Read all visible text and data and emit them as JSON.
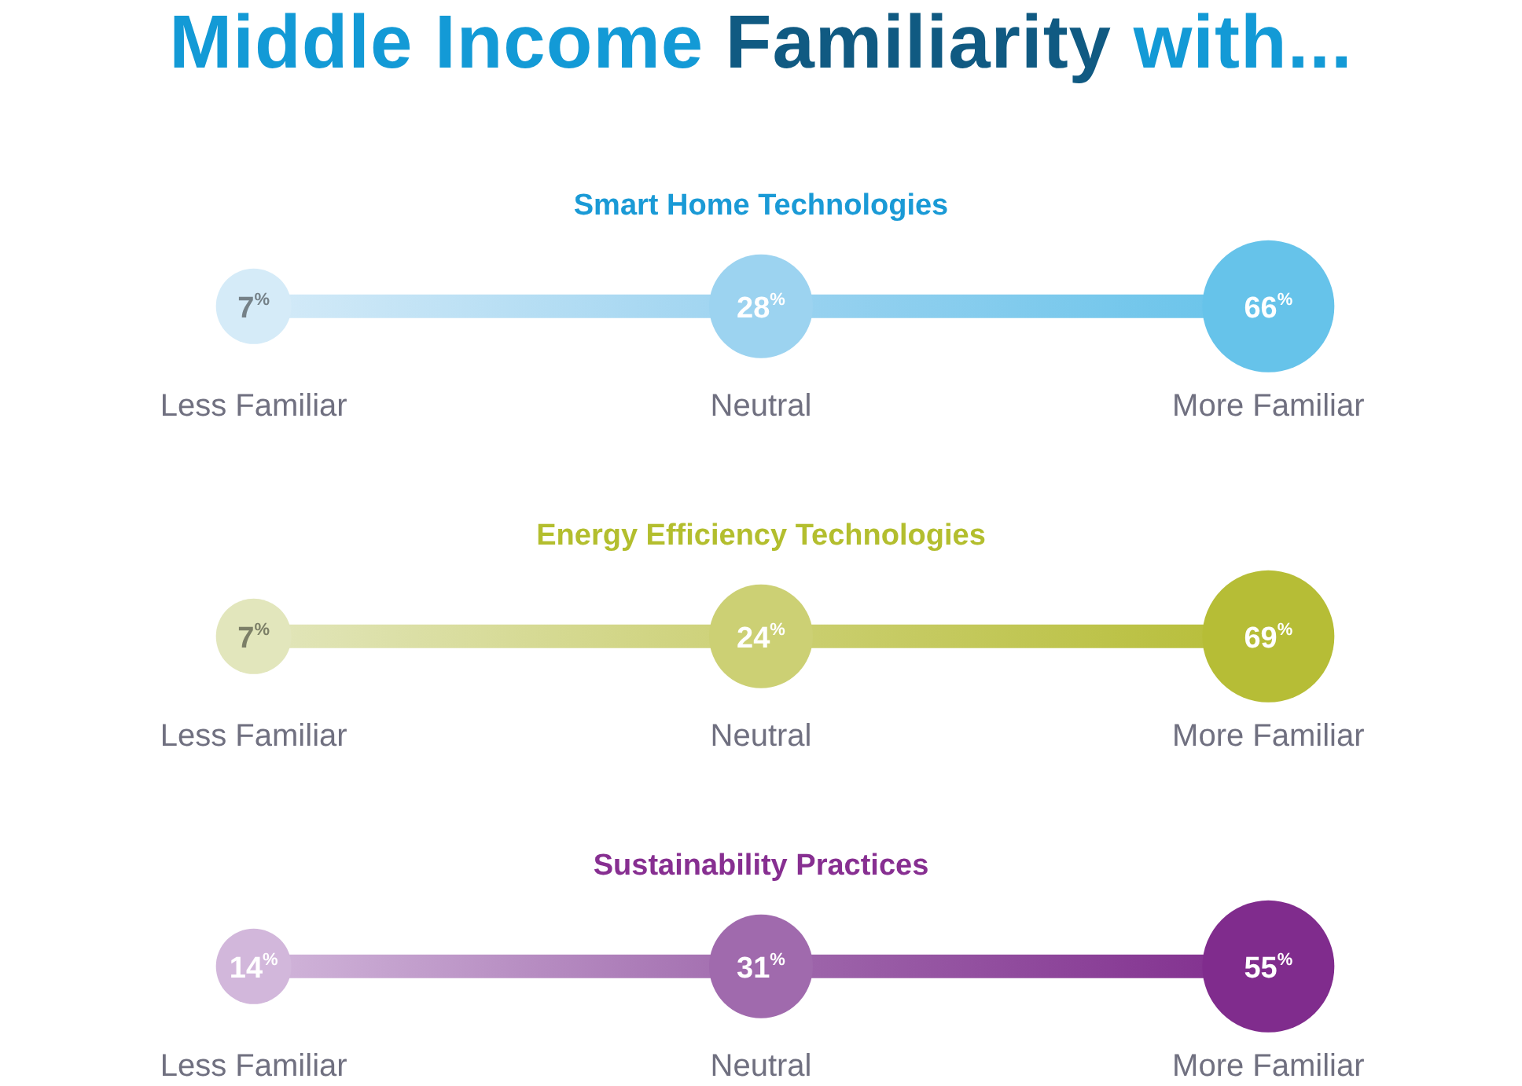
{
  "chart_data": [
    {
      "type": "other",
      "title": "Middle Income Familiarity with...",
      "subtitle": "Smart Home Technologies",
      "categories": [
        "Less Familiar",
        "Neutral",
        "More Familiar"
      ],
      "values": [
        7,
        28,
        66
      ],
      "value_labels": [
        "7$^{%}$",
        "28$^{%}$",
        "66$^{%}$"
      ],
      "colors": [
        "#d5ebf8",
        "#9cd3f0",
        "#66c3ea"
      ]
    },
    {
      "type": "other",
      "subtitle": "Energy Efficiency Technologies",
      "categories": [
        "Less Familiar",
        "Neutral",
        "More Familiar"
      ],
      "values": [
        7,
        24,
        69
      ],
      "value_labels": [
        "7$^{%}$",
        "24$^{%}$",
        "69$^{%}$"
      ],
      "colors": [
        "#e2e6bc",
        "#ccd074",
        "#b6bd36"
      ]
    },
    {
      "type": "other",
      "subtitle": "Sustainability Practices",
      "categories": [
        "Less Familiar",
        "Neutral",
        "More Familiar"
      ],
      "values": [
        14,
        31,
        55
      ],
      "value_labels": [
        "14$^{%}$",
        "31$^{%}$",
        "55$^{%}$"
      ],
      "colors": [
        "#d2b7db",
        "#a06aad",
        "#802c8d"
      ]
    }
  ]
}
